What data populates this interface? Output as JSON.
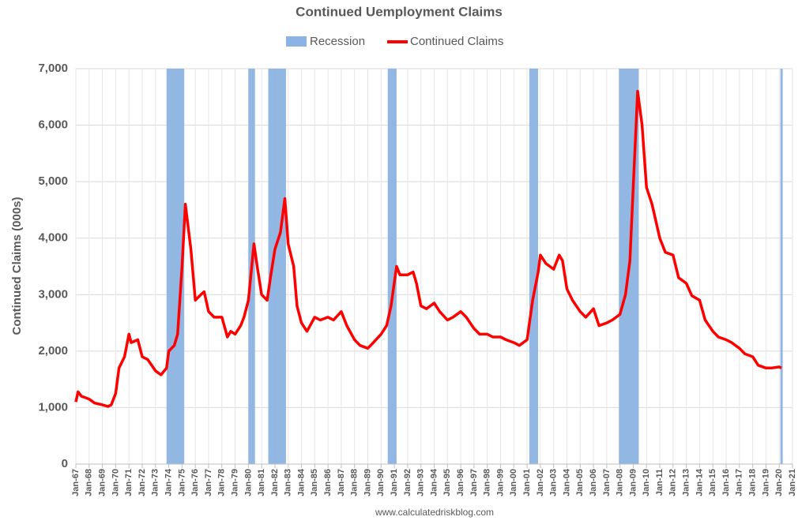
{
  "chart_data": {
    "type": "line",
    "title": "Continued Uemployment Claims",
    "ylabel": "Continued Claims (000s)",
    "source": "www.calculatedriskblog.com",
    "grid": true,
    "legend": "top",
    "recessions": {
      "name": "Recession",
      "color": "#8db3e2",
      "periods": [
        {
          "start": "1973-11",
          "end": "1975-03"
        },
        {
          "start": "1980-01",
          "end": "1980-07"
        },
        {
          "start": "1981-07",
          "end": "1982-11"
        },
        {
          "start": "1990-07",
          "end": "1991-03"
        },
        {
          "start": "2001-03",
          "end": "2001-11"
        },
        {
          "start": "2007-12",
          "end": "2009-06"
        },
        {
          "start": "2020-02",
          "end": "2020-04"
        }
      ]
    },
    "x": [
      "1967-01",
      "1967-03",
      "1967-06",
      "1967-09",
      "1968-01",
      "1968-06",
      "1969-01",
      "1969-06",
      "1969-09",
      "1970-01",
      "1970-04",
      "1970-09",
      "1971-01",
      "1971-03",
      "1971-09",
      "1972-01",
      "1972-06",
      "1973-01",
      "1973-06",
      "1973-11",
      "1974-01",
      "1974-06",
      "1974-09",
      "1975-01",
      "1975-04",
      "1975-09",
      "1976-01",
      "1976-06",
      "1976-09",
      "1977-01",
      "1977-06",
      "1978-01",
      "1978-06",
      "1978-09",
      "1979-01",
      "1979-06",
      "1979-09",
      "1980-01",
      "1980-06",
      "1980-09",
      "1981-01",
      "1981-06",
      "1981-09",
      "1982-01",
      "1982-06",
      "1982-10",
      "1983-01",
      "1983-06",
      "1983-09",
      "1984-01",
      "1984-06",
      "1985-01",
      "1985-06",
      "1986-01",
      "1986-06",
      "1987-01",
      "1987-06",
      "1988-01",
      "1988-06",
      "1989-01",
      "1989-06",
      "1990-01",
      "1990-06",
      "1990-10",
      "1991-03",
      "1991-06",
      "1992-01",
      "1992-06",
      "1992-09",
      "1993-01",
      "1993-06",
      "1994-01",
      "1994-06",
      "1995-01",
      "1995-06",
      "1996-01",
      "1996-06",
      "1997-01",
      "1997-06",
      "1998-01",
      "1998-06",
      "1999-01",
      "1999-06",
      "2000-01",
      "2000-06",
      "2001-01",
      "2001-06",
      "2001-11",
      "2002-01",
      "2002-06",
      "2003-01",
      "2003-06",
      "2003-09",
      "2004-01",
      "2004-06",
      "2005-01",
      "2005-06",
      "2006-01",
      "2006-06",
      "2007-01",
      "2007-06",
      "2008-01",
      "2008-06",
      "2008-10",
      "2009-01",
      "2009-05",
      "2009-09",
      "2010-01",
      "2010-06",
      "2011-01",
      "2011-06",
      "2012-01",
      "2012-06",
      "2013-01",
      "2013-06",
      "2014-01",
      "2014-06",
      "2015-01",
      "2015-06",
      "2016-01",
      "2016-06",
      "2017-01",
      "2017-06",
      "2018-01",
      "2018-06",
      "2019-01",
      "2019-06",
      "2020-01",
      "2020-03"
    ],
    "series": [
      {
        "name": "Continued Claims",
        "color": "#ff0000",
        "values": [
          1100,
          1280,
          1200,
          1180,
          1150,
          1080,
          1050,
          1020,
          1050,
          1250,
          1700,
          1900,
          2300,
          2150,
          2200,
          1900,
          1850,
          1650,
          1580,
          1700,
          2000,
          2100,
          2300,
          3500,
          4600,
          3800,
          2900,
          3000,
          3050,
          2700,
          2600,
          2600,
          2250,
          2350,
          2300,
          2450,
          2600,
          2900,
          3900,
          3500,
          3000,
          2900,
          3300,
          3800,
          4100,
          4700,
          3900,
          3500,
          2800,
          2500,
          2350,
          2600,
          2550,
          2600,
          2550,
          2700,
          2450,
          2200,
          2100,
          2050,
          2150,
          2300,
          2450,
          2800,
          3500,
          3350,
          3350,
          3400,
          3200,
          2800,
          2750,
          2850,
          2700,
          2550,
          2600,
          2700,
          2600,
          2400,
          2300,
          2300,
          2250,
          2250,
          2200,
          2150,
          2100,
          2200,
          2900,
          3400,
          3700,
          3550,
          3450,
          3700,
          3600,
          3100,
          2900,
          2700,
          2600,
          2750,
          2450,
          2500,
          2550,
          2650,
          3000,
          3600,
          4900,
          6600,
          6000,
          4900,
          4600,
          4000,
          3750,
          3700,
          3300,
          3200,
          2980,
          2900,
          2550,
          2350,
          2250,
          2200,
          2150,
          2050,
          1950,
          1900,
          1750,
          1700,
          1700,
          1720,
          1700
        ]
      }
    ],
    "ylim": [
      0,
      7000
    ],
    "yticks": [
      0,
      {
        "value": 1000,
        "label": "1,000"
      },
      {
        "value": 2000,
        "label": "2,000"
      },
      {
        "value": 3000,
        "label": "3,000"
      },
      {
        "value": 4000,
        "label": "4,000"
      },
      {
        "value": 5000,
        "label": "5,000"
      },
      {
        "value": 6000,
        "label": "6,000"
      },
      {
        "value": 7000,
        "label": "7,000"
      }
    ],
    "xlim": [
      "1967-01",
      "2021-01"
    ],
    "xticks": [
      {
        "value": "1967-01",
        "label": "Jan-67"
      },
      {
        "value": "1968-01",
        "label": "Jan-68"
      },
      {
        "value": "1969-01",
        "label": "Jan-69"
      },
      {
        "value": "1970-01",
        "label": "Jan-70"
      },
      {
        "value": "1971-01",
        "label": "Jan-71"
      },
      {
        "value": "1972-01",
        "label": "Jan-72"
      },
      {
        "value": "1973-01",
        "label": "Jan-73"
      },
      {
        "value": "1974-01",
        "label": "Jan-74"
      },
      {
        "value": "1975-01",
        "label": "Jan-75"
      },
      {
        "value": "1976-01",
        "label": "Jan-76"
      },
      {
        "value": "1977-01",
        "label": "Jan-77"
      },
      {
        "value": "1978-01",
        "label": "Jan-78"
      },
      {
        "value": "1979-01",
        "label": "Jan-79"
      },
      {
        "value": "1980-01",
        "label": "Jan-80"
      },
      {
        "value": "1981-01",
        "label": "Jan-81"
      },
      {
        "value": "1982-01",
        "label": "Jan-82"
      },
      {
        "value": "1983-01",
        "label": "Jan-83"
      },
      {
        "value": "1984-01",
        "label": "Jan-84"
      },
      {
        "value": "1985-01",
        "label": "Jan-85"
      },
      {
        "value": "1986-01",
        "label": "Jan-86"
      },
      {
        "value": "1987-01",
        "label": "Jan-87"
      },
      {
        "value": "1988-01",
        "label": "Jan-88"
      },
      {
        "value": "1989-01",
        "label": "Jan-89"
      },
      {
        "value": "1990-01",
        "label": "Jan-90"
      },
      {
        "value": "1991-01",
        "label": "Jan-91"
      },
      {
        "value": "1992-01",
        "label": "Jan-92"
      },
      {
        "value": "1993-01",
        "label": "Jan-93"
      },
      {
        "value": "1994-01",
        "label": "Jan-94"
      },
      {
        "value": "1995-01",
        "label": "Jan-95"
      },
      {
        "value": "1996-01",
        "label": "Jan-96"
      },
      {
        "value": "1997-01",
        "label": "Jan-97"
      },
      {
        "value": "1998-01",
        "label": "Jan-98"
      },
      {
        "value": "1999-01",
        "label": "Jan-99"
      },
      {
        "value": "2000-01",
        "label": "Jan-00"
      },
      {
        "value": "2001-01",
        "label": "Jan-01"
      },
      {
        "value": "2002-01",
        "label": "Jan-02"
      },
      {
        "value": "2003-01",
        "label": "Jan-03"
      },
      {
        "value": "2004-01",
        "label": "Jan-04"
      },
      {
        "value": "2005-01",
        "label": "Jan-05"
      },
      {
        "value": "2006-01",
        "label": "Jan-06"
      },
      {
        "value": "2007-01",
        "label": "Jan-07"
      },
      {
        "value": "2008-01",
        "label": "Jan-08"
      },
      {
        "value": "2009-01",
        "label": "Jan-09"
      },
      {
        "value": "2010-01",
        "label": "Jan-10"
      },
      {
        "value": "2011-01",
        "label": "Jan-11"
      },
      {
        "value": "2012-01",
        "label": "Jan-12"
      },
      {
        "value": "2013-01",
        "label": "Jan-13"
      },
      {
        "value": "2014-01",
        "label": "Jan-14"
      },
      {
        "value": "2015-01",
        "label": "Jan-15"
      },
      {
        "value": "2016-01",
        "label": "Jan-16"
      },
      {
        "value": "2017-01",
        "label": "Jan-17"
      },
      {
        "value": "2018-01",
        "label": "Jan-18"
      },
      {
        "value": "2019-01",
        "label": "Jan-19"
      },
      {
        "value": "2020-01",
        "label": "Jan-20"
      },
      {
        "value": "2021-01",
        "label": "Jan-21"
      }
    ]
  }
}
